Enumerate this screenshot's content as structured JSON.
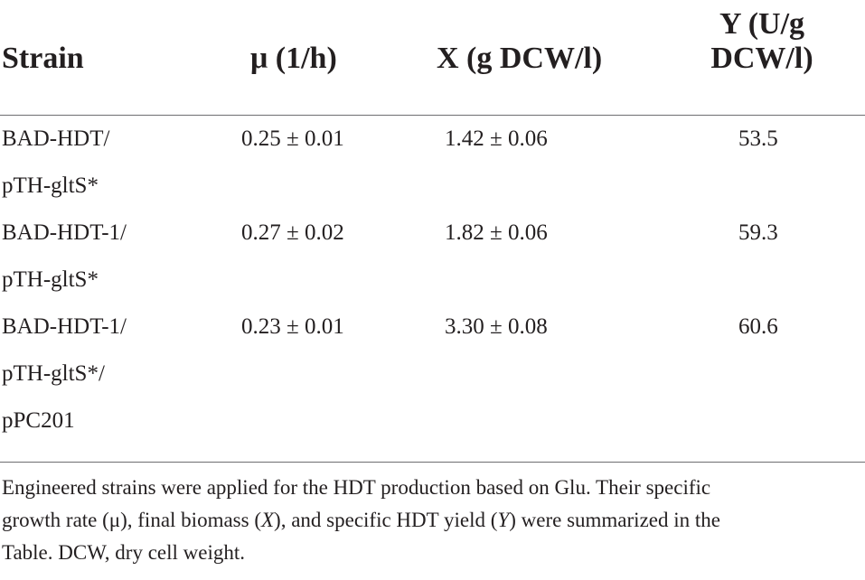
{
  "table": {
    "headers": {
      "strain": "Strain",
      "mu": "μ (1/h)",
      "x": "X (g DCW/l)",
      "y_line1": "Y (U/g",
      "y_line2": "DCW/l)"
    },
    "rows": [
      {
        "strain_lines": [
          "BAD-HDT/",
          "pTH-gltS*"
        ],
        "mu": "0.25 ± 0.01",
        "x": "1.42 ± 0.06",
        "y": "53.5"
      },
      {
        "strain_lines": [
          "BAD-HDT-1/",
          "pTH-gltS*"
        ],
        "mu": "0.27 ± 0.02",
        "x": "1.82 ± 0.06",
        "y": "59.3"
      },
      {
        "strain_lines": [
          "BAD-HDT-1/",
          "pTH-gltS*/",
          "pPC201"
        ],
        "mu": "0.23 ± 0.01",
        "x": "3.30 ± 0.08",
        "y": "60.6"
      }
    ]
  },
  "footnote": {
    "seg1": "Engineered strains were applied for the HDT production based on Glu. Their specific",
    "seg2": "growth rate (μ), final biomass (",
    "seg3": "X",
    "seg4": "), and specific HDT yield (",
    "seg5": "Y",
    "seg6": ") were summarized in the",
    "seg7": "Table. DCW, dry cell weight."
  }
}
